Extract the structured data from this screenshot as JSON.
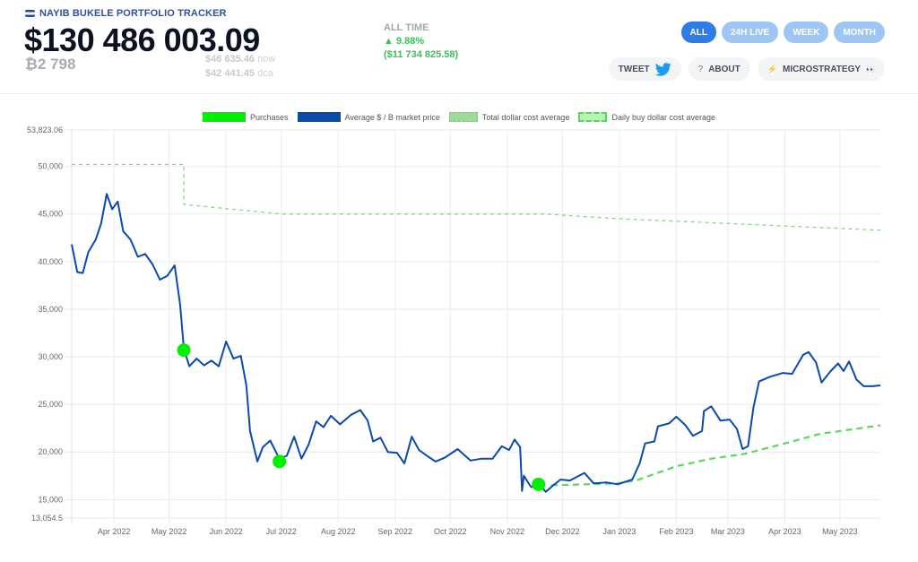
{
  "header": {
    "brand": "NAYIB BUKELE PORTFOLIO TRACKER",
    "total_value": "$130 486 003.09",
    "btc_holdings": "₿2 798",
    "price_now": "$46 635.46",
    "price_now_suffix": "now",
    "price_dca": "$42 441.45",
    "price_dca_suffix": "dca",
    "alltime_label": "ALL TIME",
    "alltime_pct": "▲ 9.88%",
    "alltime_amount": "($11 734 825.58)"
  },
  "ranges": [
    {
      "label": "ALL",
      "active": true
    },
    {
      "label": "24H LIVE",
      "active": false
    },
    {
      "label": "WEEK",
      "active": false
    },
    {
      "label": "MONTH",
      "active": false
    }
  ],
  "actions": {
    "tweet": "TWEET",
    "about_icon": "?",
    "about": "ABOUT",
    "microstrategy": "MICROSTRATEGY",
    "microstrategy_icon": "⚡",
    "eyes_icon": "👀"
  },
  "colors": {
    "accent": "#2f7be8",
    "price_line": "#0a4aab",
    "purchases": "#00f000",
    "dca_line": "#56d856",
    "positive": "#3bbf5b"
  },
  "chart_data": {
    "type": "line",
    "title": "",
    "xlabel": "",
    "ylabel": "",
    "ylim": [
      13054.5,
      53823.06
    ],
    "grid": true,
    "legend_position": "top",
    "legend": [
      "Purchases",
      "Average $ / B market price",
      "Total dollar cost average",
      "Daily buy dollar cost average"
    ],
    "y_ticks": [
      "53,823.06",
      "50,000",
      "45,000",
      "40,000",
      "35,000",
      "30,000",
      "25,000",
      "20,000",
      "15,000",
      "13,054.5"
    ],
    "x_ticks": [
      "Apr 2022",
      "May 2022",
      "Jun 2022",
      "Jul 2022",
      "Aug 2022",
      "Sep 2022",
      "Oct 2022",
      "Nov 2022",
      "Dec 2022",
      "Jan 2023",
      "Feb 2023",
      "Mar 2023",
      "Apr 2023",
      "May 2023"
    ],
    "series": [
      {
        "name": "Average $ / B market price",
        "type": "line",
        "points": [
          [
            "2022-03-09",
            41800
          ],
          [
            "2022-03-12",
            38900
          ],
          [
            "2022-03-15",
            38800
          ],
          [
            "2022-03-18",
            41000
          ],
          [
            "2022-03-22",
            42300
          ],
          [
            "2022-03-25",
            44000
          ],
          [
            "2022-03-28",
            47100
          ],
          [
            "2022-03-31",
            45500
          ],
          [
            "2022-04-03",
            46300
          ],
          [
            "2022-04-06",
            43200
          ],
          [
            "2022-04-10",
            42300
          ],
          [
            "2022-04-14",
            40500
          ],
          [
            "2022-04-18",
            40800
          ],
          [
            "2022-04-22",
            39700
          ],
          [
            "2022-04-26",
            38100
          ],
          [
            "2022-04-30",
            38500
          ],
          [
            "2022-05-04",
            39600
          ],
          [
            "2022-05-07",
            35500
          ],
          [
            "2022-05-09",
            30800
          ],
          [
            "2022-05-12",
            29000
          ],
          [
            "2022-05-16",
            29800
          ],
          [
            "2022-05-20",
            29100
          ],
          [
            "2022-05-24",
            29600
          ],
          [
            "2022-05-28",
            29000
          ],
          [
            "2022-06-01",
            31600
          ],
          [
            "2022-06-05",
            29800
          ],
          [
            "2022-06-09",
            30100
          ],
          [
            "2022-06-12",
            27000
          ],
          [
            "2022-06-14",
            22200
          ],
          [
            "2022-06-18",
            19000
          ],
          [
            "2022-06-21",
            20500
          ],
          [
            "2022-06-25",
            21200
          ],
          [
            "2022-06-30",
            19300
          ],
          [
            "2022-07-04",
            19600
          ],
          [
            "2022-07-08",
            21600
          ],
          [
            "2022-07-12",
            19300
          ],
          [
            "2022-07-16",
            20800
          ],
          [
            "2022-07-20",
            23200
          ],
          [
            "2022-07-24",
            22600
          ],
          [
            "2022-07-28",
            23800
          ],
          [
            "2022-08-02",
            22900
          ],
          [
            "2022-08-08",
            23900
          ],
          [
            "2022-08-13",
            24400
          ],
          [
            "2022-08-17",
            23300
          ],
          [
            "2022-08-20",
            21100
          ],
          [
            "2022-08-24",
            21500
          ],
          [
            "2022-08-28",
            20000
          ],
          [
            "2022-09-02",
            19900
          ],
          [
            "2022-09-06",
            18800
          ],
          [
            "2022-09-10",
            21600
          ],
          [
            "2022-09-14",
            20200
          ],
          [
            "2022-09-19",
            19500
          ],
          [
            "2022-09-23",
            19000
          ],
          [
            "2022-09-28",
            19400
          ],
          [
            "2022-10-05",
            20300
          ],
          [
            "2022-10-12",
            19100
          ],
          [
            "2022-10-18",
            19300
          ],
          [
            "2022-10-24",
            19300
          ],
          [
            "2022-10-29",
            20600
          ],
          [
            "2022-11-02",
            20200
          ],
          [
            "2022-11-05",
            21300
          ],
          [
            "2022-11-08",
            20500
          ],
          [
            "2022-11-09",
            15900
          ],
          [
            "2022-11-10",
            17500
          ],
          [
            "2022-11-14",
            16300
          ],
          [
            "2022-11-18",
            16700
          ],
          [
            "2022-11-22",
            15800
          ],
          [
            "2022-11-26",
            16500
          ],
          [
            "2022-11-30",
            17100
          ],
          [
            "2022-12-05",
            17000
          ],
          [
            "2022-12-13",
            17800
          ],
          [
            "2022-12-18",
            16700
          ],
          [
            "2022-12-25",
            16800
          ],
          [
            "2022-12-31",
            16600
          ],
          [
            "2023-01-08",
            17100
          ],
          [
            "2023-01-12",
            18800
          ],
          [
            "2023-01-15",
            20900
          ],
          [
            "2023-01-20",
            21100
          ],
          [
            "2023-01-22",
            22700
          ],
          [
            "2023-01-28",
            23000
          ],
          [
            "2023-02-01",
            23700
          ],
          [
            "2023-02-06",
            22800
          ],
          [
            "2023-02-10",
            21700
          ],
          [
            "2023-02-15",
            22200
          ],
          [
            "2023-02-16",
            24300
          ],
          [
            "2023-02-20",
            24800
          ],
          [
            "2023-02-25",
            23300
          ],
          [
            "2023-03-02",
            23400
          ],
          [
            "2023-03-06",
            22400
          ],
          [
            "2023-03-09",
            20300
          ],
          [
            "2023-03-12",
            20600
          ],
          [
            "2023-03-15",
            24700
          ],
          [
            "2023-03-18",
            27400
          ],
          [
            "2023-03-24",
            27900
          ],
          [
            "2023-03-31",
            28300
          ],
          [
            "2023-04-05",
            28200
          ],
          [
            "2023-04-11",
            30200
          ],
          [
            "2023-04-14",
            30500
          ],
          [
            "2023-04-18",
            29400
          ],
          [
            "2023-04-21",
            27300
          ],
          [
            "2023-04-26",
            28500
          ],
          [
            "2023-04-30",
            29300
          ],
          [
            "2023-05-03",
            28500
          ],
          [
            "2023-05-06",
            29500
          ],
          [
            "2023-05-10",
            27600
          ],
          [
            "2023-05-14",
            26900
          ],
          [
            "2023-05-19",
            26900
          ],
          [
            "2023-05-23",
            27000
          ]
        ]
      },
      {
        "name": "Total dollar cost average",
        "type": "line",
        "points": [
          [
            "2022-03-09",
            50200
          ],
          [
            "2022-05-09",
            50200
          ],
          [
            "2022-05-09",
            46000
          ],
          [
            "2022-07-01",
            45000
          ],
          [
            "2022-11-21",
            45000
          ],
          [
            "2023-01-01",
            44500
          ],
          [
            "2023-05-23",
            43300
          ]
        ]
      },
      {
        "name": "Daily buy dollar cost average",
        "type": "line",
        "points": [
          [
            "2022-11-25",
            16500
          ],
          [
            "2022-12-31",
            16700
          ],
          [
            "2023-01-10",
            17000
          ],
          [
            "2023-02-01",
            18500
          ],
          [
            "2023-02-20",
            19300
          ],
          [
            "2023-03-10",
            19800
          ],
          [
            "2023-04-01",
            20900
          ],
          [
            "2023-04-20",
            21900
          ],
          [
            "2023-05-23",
            22800
          ]
        ]
      },
      {
        "name": "Purchases",
        "type": "scatter",
        "points": [
          [
            "2022-05-09",
            30700
          ],
          [
            "2022-06-30",
            19000
          ],
          [
            "2022-11-18",
            16600
          ]
        ]
      }
    ]
  }
}
